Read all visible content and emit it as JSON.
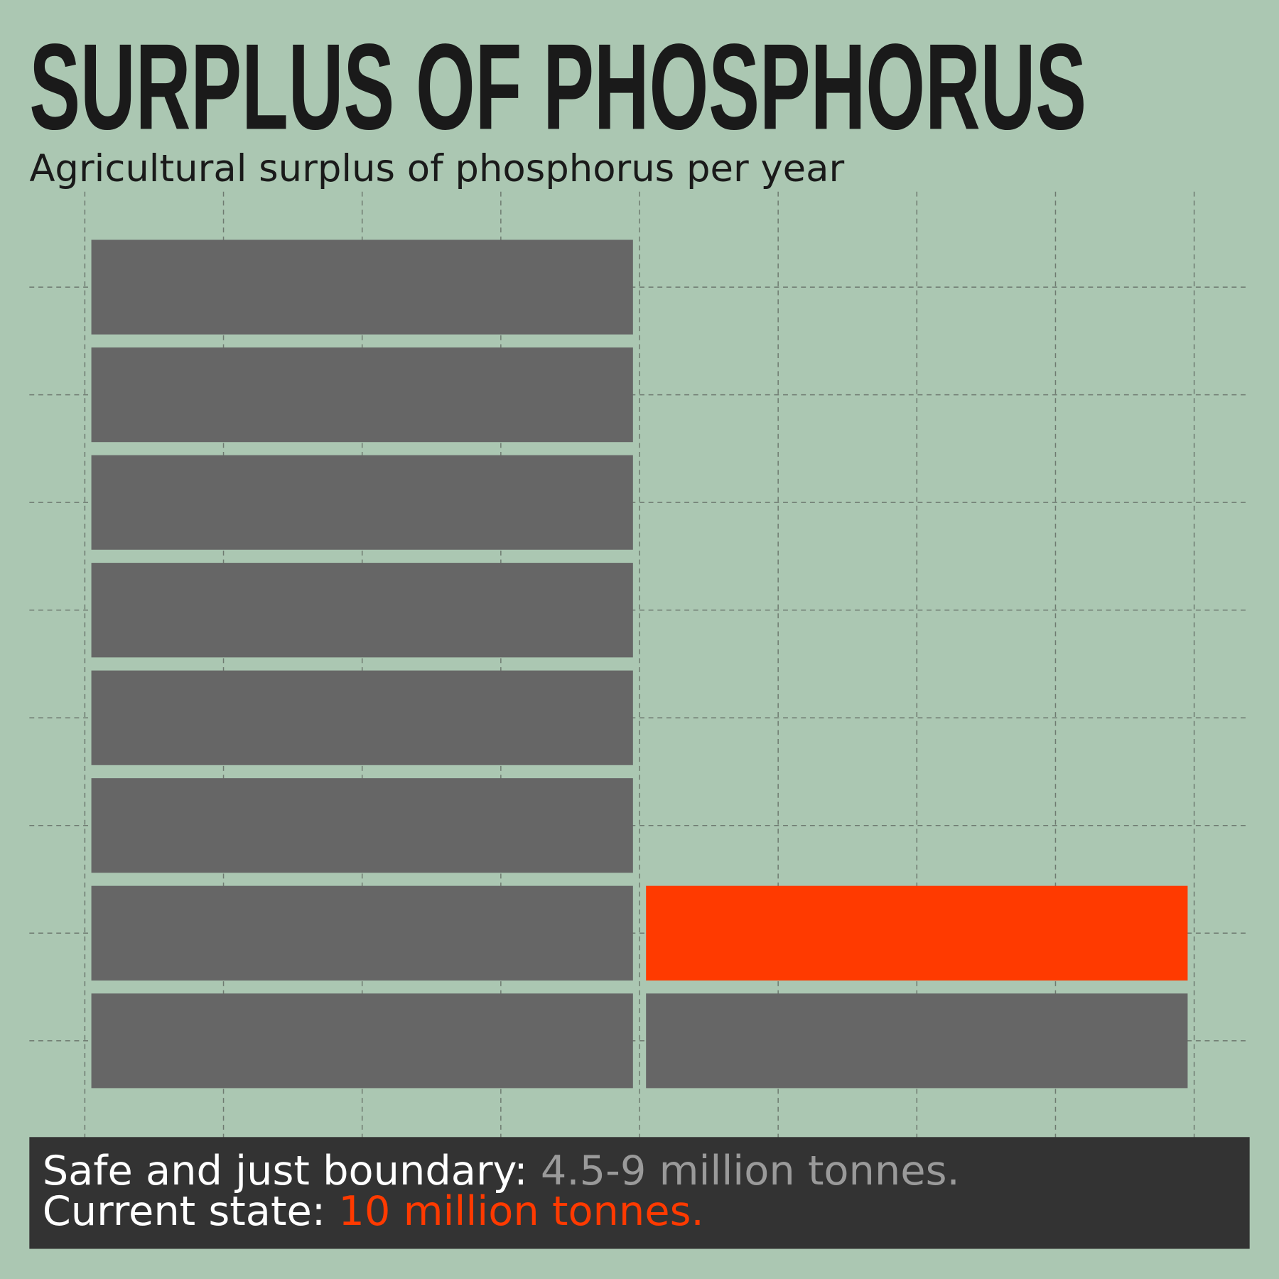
{
  "header": {
    "title": "SURPLUS OF PHOSPHORUS",
    "subtitle": "Agricultural surplus of phosphorus per year"
  },
  "footer": {
    "lines": [
      {
        "label": "Safe and just boundary:",
        "value": "4.5-9 million tonnes."
      },
      {
        "label": "Current state:",
        "value": "10 million tonnes."
      }
    ]
  }
}
